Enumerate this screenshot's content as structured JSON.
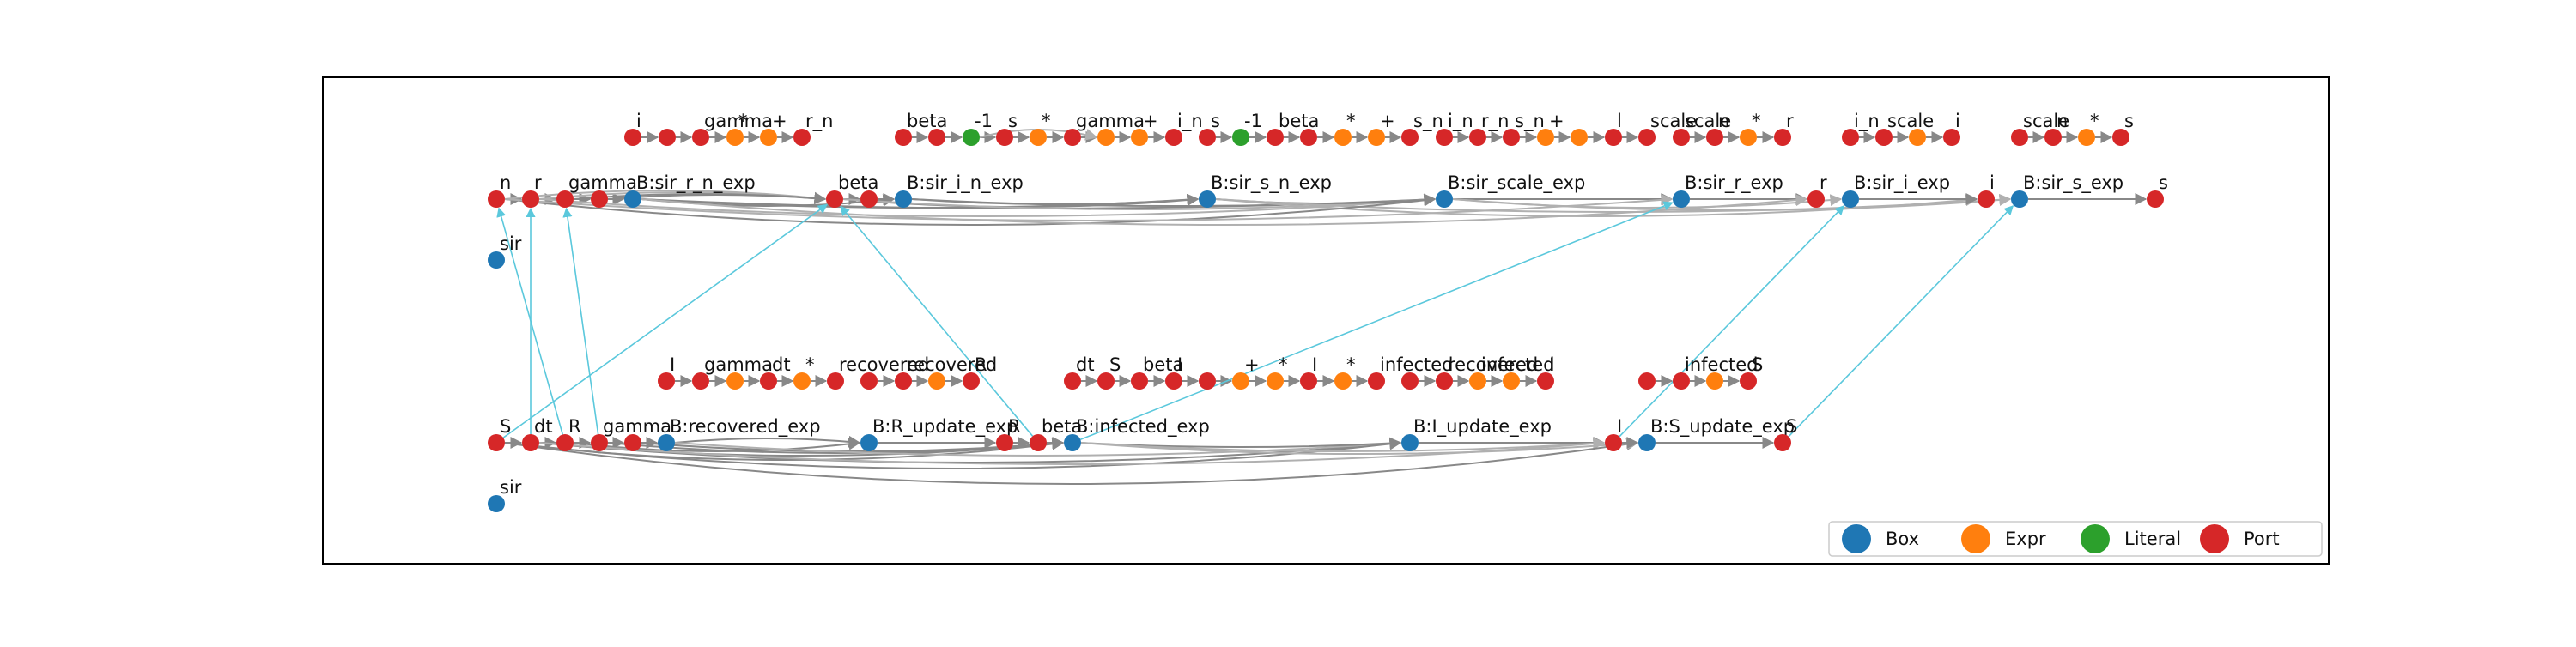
{
  "colors": {
    "Box": "#1f77b4",
    "Expr": "#ff7f0e",
    "Literal": "#2ca02c",
    "Port": "#d62728",
    "edge": "#888888",
    "edge_light": "#b0b0b0",
    "cross_edge": "#5bc8dc",
    "frame": "#000000"
  },
  "legend": [
    {
      "kind": "Box",
      "label": "Box"
    },
    {
      "kind": "Expr",
      "label": "Expr"
    },
    {
      "kind": "Literal",
      "label": "Literal"
    },
    {
      "kind": "Port",
      "label": "Port"
    }
  ],
  "top": {
    "nodes": [
      {
        "id": "t_n",
        "k": "Port",
        "label": "n"
      },
      {
        "id": "t_r",
        "k": "Port",
        "label": "r"
      },
      {
        "id": "t_gamma",
        "k": "Port",
        "label": "gamma"
      },
      {
        "id": "t_p4",
        "k": "Port",
        "label": ""
      },
      {
        "id": "B_rn",
        "k": "Box",
        "label": "B:sir_r_n_exp"
      },
      {
        "id": "t_sir",
        "k": "Box",
        "label": "sir"
      },
      {
        "id": "t_beta",
        "k": "Port",
        "label": "beta"
      },
      {
        "id": "t_p7",
        "k": "Port",
        "label": ""
      },
      {
        "id": "B_in",
        "k": "Box",
        "label": "B:sir_i_n_exp"
      },
      {
        "id": "B_sn",
        "k": "Box",
        "label": "B:sir_s_n_exp"
      },
      {
        "id": "B_scale",
        "k": "Box",
        "label": "B:sir_scale_exp"
      },
      {
        "id": "B_r",
        "k": "Box",
        "label": "B:sir_r_exp"
      },
      {
        "id": "t_r_out",
        "k": "Port",
        "label": "r"
      },
      {
        "id": "B_i",
        "k": "Box",
        "label": "B:sir_i_exp"
      },
      {
        "id": "t_i_out",
        "k": "Port",
        "label": "i"
      },
      {
        "id": "B_s",
        "k": "Box",
        "label": "B:sir_s_exp"
      },
      {
        "id": "t_s_out",
        "k": "Port",
        "label": "s"
      },
      {
        "id": "g1_i",
        "k": "Port",
        "label": "i"
      },
      {
        "id": "g1_p2",
        "k": "Port",
        "label": ""
      },
      {
        "id": "g1_gamma",
        "k": "Port",
        "label": "gamma"
      },
      {
        "id": "g1_mul",
        "k": "Expr",
        "label": "*"
      },
      {
        "id": "g1_plus",
        "k": "Expr",
        "label": "+"
      },
      {
        "id": "g1_rn",
        "k": "Port",
        "label": "r_n"
      },
      {
        "id": "g2_beta",
        "k": "Port",
        "label": "beta"
      },
      {
        "id": "g2_p2",
        "k": "Port",
        "label": ""
      },
      {
        "id": "g2_lit1",
        "k": "Literal",
        "label": "-1"
      },
      {
        "id": "g2_s",
        "k": "Port",
        "label": "s"
      },
      {
        "id": "g2_mul1",
        "k": "Expr",
        "label": "*"
      },
      {
        "id": "g2_gamma",
        "k": "Port",
        "label": "gamma"
      },
      {
        "id": "g2_e7",
        "k": "Expr",
        "label": ""
      },
      {
        "id": "g2_plus1",
        "k": "Expr",
        "label": "+"
      },
      {
        "id": "g2_in",
        "k": "Port",
        "label": "i_n"
      },
      {
        "id": "g3_s",
        "k": "Port",
        "label": "s"
      },
      {
        "id": "g3_lit1",
        "k": "Literal",
        "label": "-1"
      },
      {
        "id": "g3_beta",
        "k": "Port",
        "label": "beta"
      },
      {
        "id": "g3_p4",
        "k": "Port",
        "label": ""
      },
      {
        "id": "g3_mul",
        "k": "Expr",
        "label": "*"
      },
      {
        "id": "g3_plus",
        "k": "Expr",
        "label": "+"
      },
      {
        "id": "g3_sn",
        "k": "Port",
        "label": "s_n"
      },
      {
        "id": "g4_in",
        "k": "Port",
        "label": "i_n"
      },
      {
        "id": "g4_rn",
        "k": "Port",
        "label": "r_n"
      },
      {
        "id": "g4_sn",
        "k": "Port",
        "label": "s_n"
      },
      {
        "id": "g4_plus1",
        "k": "Expr",
        "label": "+"
      },
      {
        "id": "g4_plus2",
        "k": "Expr",
        "label": ""
      },
      {
        "id": "g4_l",
        "k": "Port",
        "label": "l"
      },
      {
        "id": "g4_scale",
        "k": "Port",
        "label": "scale"
      },
      {
        "id": "g5_scale",
        "k": "Port",
        "label": "scale"
      },
      {
        "id": "g5_n",
        "k": "Port",
        "label": "n"
      },
      {
        "id": "g5_mul",
        "k": "Expr",
        "label": "*"
      },
      {
        "id": "g5_r",
        "k": "Port",
        "label": "r"
      },
      {
        "id": "g6_in",
        "k": "Port",
        "label": "i_n"
      },
      {
        "id": "g6_scale",
        "k": "Port",
        "label": "scale"
      },
      {
        "id": "g6_e",
        "k": "Expr",
        "label": ""
      },
      {
        "id": "g6_i",
        "k": "Port",
        "label": "i"
      },
      {
        "id": "g7_scale",
        "k": "Port",
        "label": "scale"
      },
      {
        "id": "g7_n",
        "k": "Port",
        "label": "n"
      },
      {
        "id": "g7_mul",
        "k": "Expr",
        "label": "*"
      },
      {
        "id": "g7_s",
        "k": "Port",
        "label": "s"
      }
    ]
  },
  "bottom": {
    "nodes": [
      {
        "id": "b_S",
        "k": "Port",
        "label": "S"
      },
      {
        "id": "b_dt",
        "k": "Port",
        "label": "dt"
      },
      {
        "id": "b_R",
        "k": "Port",
        "label": "R"
      },
      {
        "id": "b_gamma",
        "k": "Port",
        "label": "gamma"
      },
      {
        "id": "b_p5",
        "k": "Port",
        "label": ""
      },
      {
        "id": "B_rec",
        "k": "Box",
        "label": "B:recovered_exp"
      },
      {
        "id": "b_sir",
        "k": "Box",
        "label": "sir"
      },
      {
        "id": "B_Ru",
        "k": "Box",
        "label": "B:R_update_exp"
      },
      {
        "id": "b_R_out",
        "k": "Port",
        "label": "R"
      },
      {
        "id": "b_beta",
        "k": "Port",
        "label": "beta"
      },
      {
        "id": "B_inf",
        "k": "Box",
        "label": "B:infected_exp"
      },
      {
        "id": "B_Iu",
        "k": "Box",
        "label": "B:I_update_exp"
      },
      {
        "id": "b_I_out",
        "k": "Port",
        "label": "I"
      },
      {
        "id": "B_Su",
        "k": "Box",
        "label": "B:S_update_exp"
      },
      {
        "id": "b_S_out",
        "k": "Port",
        "label": "S"
      },
      {
        "id": "h1_I",
        "k": "Port",
        "label": "I"
      },
      {
        "id": "h1_gamma",
        "k": "Port",
        "label": "gamma"
      },
      {
        "id": "h1_e",
        "k": "Expr",
        "label": ""
      },
      {
        "id": "h1_dt",
        "k": "Port",
        "label": "dt"
      },
      {
        "id": "h1_mul",
        "k": "Expr",
        "label": "*"
      },
      {
        "id": "h1_rec",
        "k": "Port",
        "label": "recovered"
      },
      {
        "id": "h2_p1",
        "k": "Port",
        "label": ""
      },
      {
        "id": "h2_rec",
        "k": "Port",
        "label": "recovered"
      },
      {
        "id": "h2_e",
        "k": "Expr",
        "label": ""
      },
      {
        "id": "h2_R",
        "k": "Port",
        "label": "R"
      },
      {
        "id": "h3_dt",
        "k": "Port",
        "label": "dt"
      },
      {
        "id": "h3_S",
        "k": "Port",
        "label": "S"
      },
      {
        "id": "h3_beta",
        "k": "Port",
        "label": "beta"
      },
      {
        "id": "h3_I",
        "k": "Port",
        "label": "I"
      },
      {
        "id": "h3_p5",
        "k": "Port",
        "label": ""
      },
      {
        "id": "h3_plus",
        "k": "Expr",
        "label": "+"
      },
      {
        "id": "h3_mul",
        "k": "Expr",
        "label": "*"
      },
      {
        "id": "h3_I2",
        "k": "Port",
        "label": "I"
      },
      {
        "id": "h3_mul2",
        "k": "Expr",
        "label": "*"
      },
      {
        "id": "h3_infd",
        "k": "Port",
        "label": "infected"
      },
      {
        "id": "h4_p1",
        "k": "Port",
        "label": ""
      },
      {
        "id": "h4_rec",
        "k": "Port",
        "label": "recovered"
      },
      {
        "id": "h4_inf",
        "k": "Expr",
        "label": "infected"
      },
      {
        "id": "h4_e",
        "k": "Expr",
        "label": ""
      },
      {
        "id": "h4_I",
        "k": "Port",
        "label": "I"
      },
      {
        "id": "h5_p1",
        "k": "Port",
        "label": ""
      },
      {
        "id": "h5_inf",
        "k": "Port",
        "label": "infected"
      },
      {
        "id": "h5_e",
        "k": "Expr",
        "label": ""
      },
      {
        "id": "h5_S",
        "k": "Port",
        "label": "S"
      }
    ]
  }
}
